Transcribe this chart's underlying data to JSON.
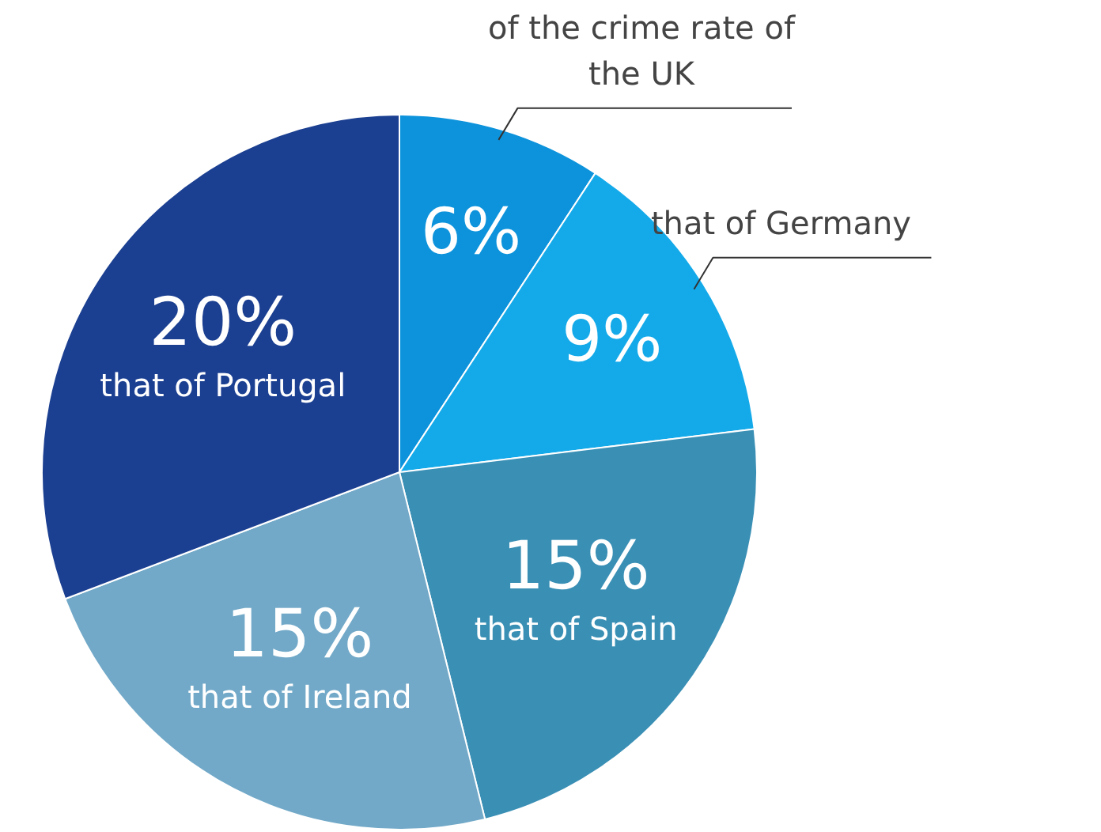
{
  "chart_data": {
    "type": "pie",
    "categories": [
      "of the crime rate of the UK",
      "that of Germany",
      "that of Spain",
      "that of Ireland",
      "that of Portugal"
    ],
    "values": [
      6,
      9,
      15,
      15,
      20
    ],
    "value_labels": [
      "6%",
      "9%",
      "15%",
      "15%",
      "20%"
    ],
    "colors": [
      "#0d93dc",
      "#14aaea",
      "#3a8fb5",
      "#72a9c8",
      "#1b3f91"
    ]
  }
}
